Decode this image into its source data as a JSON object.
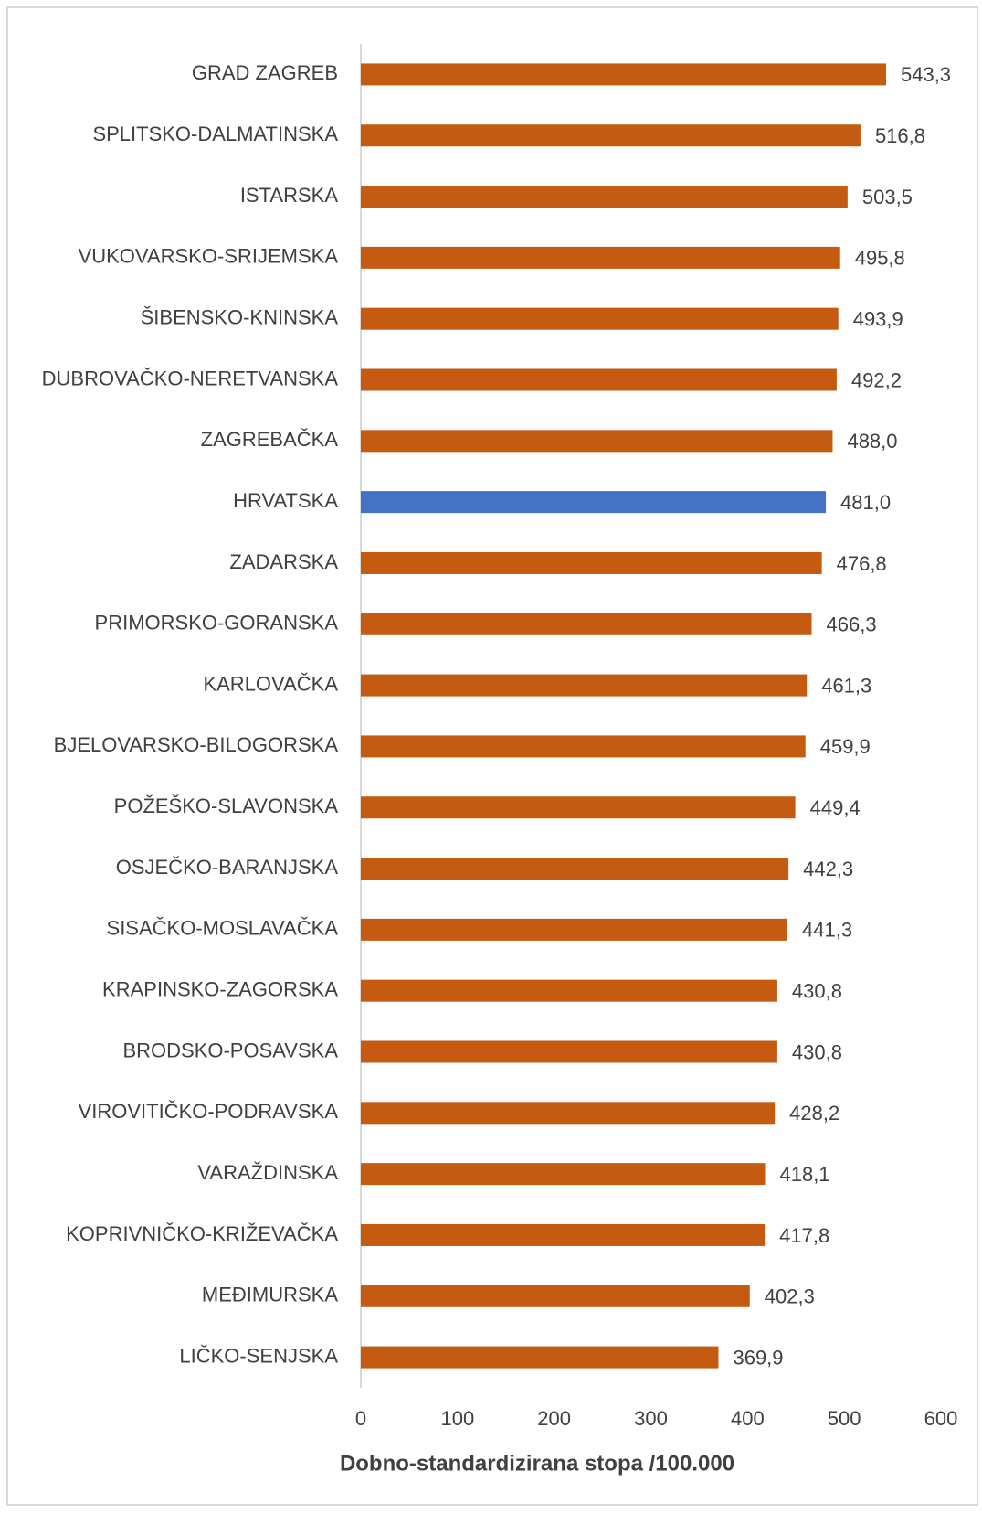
{
  "chart_data": {
    "type": "bar",
    "orientation": "horizontal",
    "x_label": "Dobno-standardizirana  stopa /100.000",
    "categories": [
      "GRAD ZAGREB",
      "SPLITSKO-DALMATINSKA",
      "ISTARSKA",
      "VUKOVARSKO-SRIJEMSKA",
      "ŠIBENSKO-KNINSKA",
      "DUBROVAČKO-NERETVANSKA",
      "ZAGREBAČKA",
      "HRVATSKA",
      "ZADARSKA",
      "PRIMORSKO-GORANSKA",
      "KARLOVAČKA",
      "BJELOVARSKO-BILOGORSKA",
      "POŽEŠKO-SLAVONSKA",
      "OSJEČKO-BARANJSKA",
      "SISAČKO-MOSLAVAČKA",
      "KRAPINSKO-ZAGORSKA",
      "BRODSKO-POSAVSKA",
      "VIROVITIČKO-PODRAVSKA",
      "VARAŽDINSKA",
      "KOPRIVNIČKO-KRIŽEVAČKA",
      "MEĐIMURSKA",
      "LIČKO-SENJSKA"
    ],
    "values": [
      543.3,
      516.8,
      503.5,
      495.8,
      493.9,
      492.2,
      488.0,
      481.0,
      476.8,
      466.3,
      461.3,
      459.9,
      449.4,
      442.3,
      441.3,
      430.8,
      430.8,
      428.2,
      418.1,
      417.8,
      402.3,
      369.9
    ],
    "value_labels": [
      "543,3",
      "516,8",
      "503,5",
      "495,8",
      "493,9",
      "492,2",
      "488,0",
      "481,0",
      "476,8",
      "466,3",
      "461,3",
      "459,9",
      "449,4",
      "442,3",
      "441,3",
      "430,8",
      "430,8",
      "428,2",
      "418,1",
      "417,8",
      "402,3",
      "369,9"
    ],
    "colors": [
      "#c55a11",
      "#c55a11",
      "#c55a11",
      "#c55a11",
      "#c55a11",
      "#c55a11",
      "#c55a11",
      "#4472c4",
      "#c55a11",
      "#c55a11",
      "#c55a11",
      "#c55a11",
      "#c55a11",
      "#c55a11",
      "#c55a11",
      "#c55a11",
      "#c55a11",
      "#c55a11",
      "#c55a11",
      "#c55a11",
      "#c55a11",
      "#c55a11"
    ],
    "xlim": [
      0,
      600
    ],
    "xticks": [
      0,
      100,
      200,
      300,
      400,
      500,
      600
    ],
    "grid": false
  }
}
